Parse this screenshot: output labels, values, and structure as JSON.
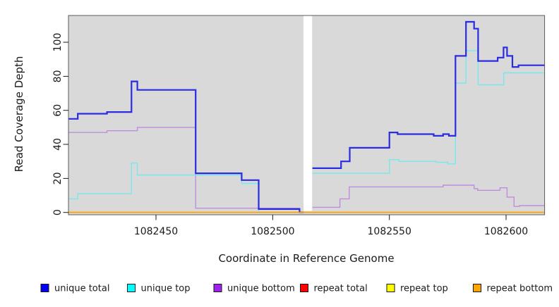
{
  "chart_data": {
    "type": "line",
    "subtype": "step",
    "title": "",
    "xlabel": "Coordinate in Reference Genome",
    "ylabel": "Read Coverage Depth",
    "xlim": [
      1082412.5,
      1082616.5
    ],
    "ylim": [
      0,
      115
    ],
    "grid": false,
    "panel_background": "#d9d9d9",
    "panel_border_color": "#5a5a5a",
    "tick_color": "#1a1a1a",
    "x_ticks": [
      {
        "value": 1082450,
        "label": "1082450"
      },
      {
        "value": 1082500,
        "label": "1082500"
      },
      {
        "value": 1082550,
        "label": "1082550"
      },
      {
        "value": 1082600,
        "label": "1082600"
      }
    ],
    "y_ticks": [
      {
        "value": 0,
        "label": "0"
      },
      {
        "value": 20,
        "label": "20"
      },
      {
        "value": 40,
        "label": "40"
      },
      {
        "value": 60,
        "label": "60"
      },
      {
        "value": 80,
        "label": "80"
      },
      {
        "value": 100,
        "label": "100"
      }
    ],
    "gap_region": {
      "x_start": 1082513.2,
      "x_end": 1082516.9,
      "color": "#ffffff"
    },
    "series": [
      {
        "name": "unique total",
        "line_color": "#2b2be0",
        "legend_color": "#0000ee",
        "line_width": 2.2,
        "segments": [
          {
            "end": 1082513.3,
            "points": [
              [
                1082412.5,
                55
              ],
              [
                1082416.5,
                58
              ],
              [
                1082429,
                59
              ],
              [
                1082439.5,
                77
              ],
              [
                1082442,
                72
              ],
              [
                1082467,
                23
              ],
              [
                1082486.7,
                19
              ],
              [
                1082494,
                2
              ],
              [
                1082511.5,
                0
              ]
            ]
          },
          {
            "end": 1082616.5,
            "points": [
              [
                1082517,
                26
              ],
              [
                1082529.3,
                30
              ],
              [
                1082533,
                38
              ],
              [
                1082550,
                47
              ],
              [
                1082553.5,
                46
              ],
              [
                1082569,
                45
              ],
              [
                1082573,
                46
              ],
              [
                1082575.5,
                45
              ],
              [
                1082578.3,
                92
              ],
              [
                1082582.8,
                112
              ],
              [
                1082586.3,
                108
              ],
              [
                1082588,
                89
              ],
              [
                1082596.4,
                91
              ],
              [
                1082598.9,
                97
              ],
              [
                1082600.4,
                92
              ],
              [
                1082602.7,
                85.5
              ],
              [
                1082605.3,
                86.5
              ]
            ]
          }
        ]
      },
      {
        "name": "unique top",
        "line_color": "#79e8ea",
        "legend_color": "#00ffff",
        "line_width": 1.4,
        "segments": [
          {
            "end": 1082513.3,
            "points": [
              [
                1082412.5,
                8
              ],
              [
                1082416.5,
                11
              ],
              [
                1082439.5,
                29
              ],
              [
                1082442,
                22
              ],
              [
                1082486.7,
                17
              ],
              [
                1082494,
                0
              ]
            ]
          },
          {
            "end": 1082616.5,
            "points": [
              [
                1082517,
                23
              ],
              [
                1082550,
                31
              ],
              [
                1082554,
                30
              ],
              [
                1082570,
                29.5
              ],
              [
                1082575,
                28.5
              ],
              [
                1082578.3,
                76
              ],
              [
                1082582.8,
                95
              ],
              [
                1082588,
                75
              ],
              [
                1082599,
                82
              ]
            ]
          }
        ]
      },
      {
        "name": "unique bottom",
        "line_color": "#bd8ede",
        "legend_color": "#a020f0",
        "line_width": 1.4,
        "segments": [
          {
            "end": 1082513.3,
            "points": [
              [
                1082412.5,
                47
              ],
              [
                1082429,
                48
              ],
              [
                1082442,
                50
              ],
              [
                1082467,
                2.5
              ],
              [
                1082511.5,
                0
              ]
            ]
          },
          {
            "end": 1082616.5,
            "points": [
              [
                1082517,
                3
              ],
              [
                1082528.8,
                8
              ],
              [
                1082532.8,
                15
              ],
              [
                1082573,
                16
              ],
              [
                1082586.3,
                14
              ],
              [
                1082587.8,
                13
              ],
              [
                1082597.4,
                14.5
              ],
              [
                1082600.4,
                9
              ],
              [
                1082603.4,
                3.5
              ],
              [
                1082605.7,
                4
              ]
            ]
          }
        ]
      },
      {
        "name": "repeat total",
        "line_color": "#ff0000",
        "legend_color": "#ff0000",
        "line_width": 1.6,
        "segments": [
          {
            "end": 1082616.5,
            "points": [
              [
                1082412.5,
                0
              ]
            ]
          }
        ]
      },
      {
        "name": "repeat top",
        "line_color": "#ffff00",
        "legend_color": "#ffff00",
        "line_width": 1.6,
        "segments": [
          {
            "end": 1082616.5,
            "points": [
              [
                1082412.5,
                0
              ]
            ]
          }
        ]
      },
      {
        "name": "repeat bottom",
        "line_color": "#ffa500",
        "legend_color": "#ffa500",
        "line_width": 1.6,
        "segments": [
          {
            "end": 1082616.5,
            "points": [
              [
                1082412.5,
                0
              ]
            ]
          }
        ]
      }
    ],
    "draw_order": [
      "repeat total",
      "repeat top",
      "unique bottom",
      "unique top",
      "unique total",
      "repeat bottom"
    ],
    "legend": {
      "position": "bottom",
      "entries": [
        {
          "label": "unique total"
        },
        {
          "label": "unique top"
        },
        {
          "label": "unique bottom"
        },
        {
          "label": "repeat total"
        },
        {
          "label": "repeat top"
        },
        {
          "label": "repeat bottom"
        }
      ]
    }
  }
}
